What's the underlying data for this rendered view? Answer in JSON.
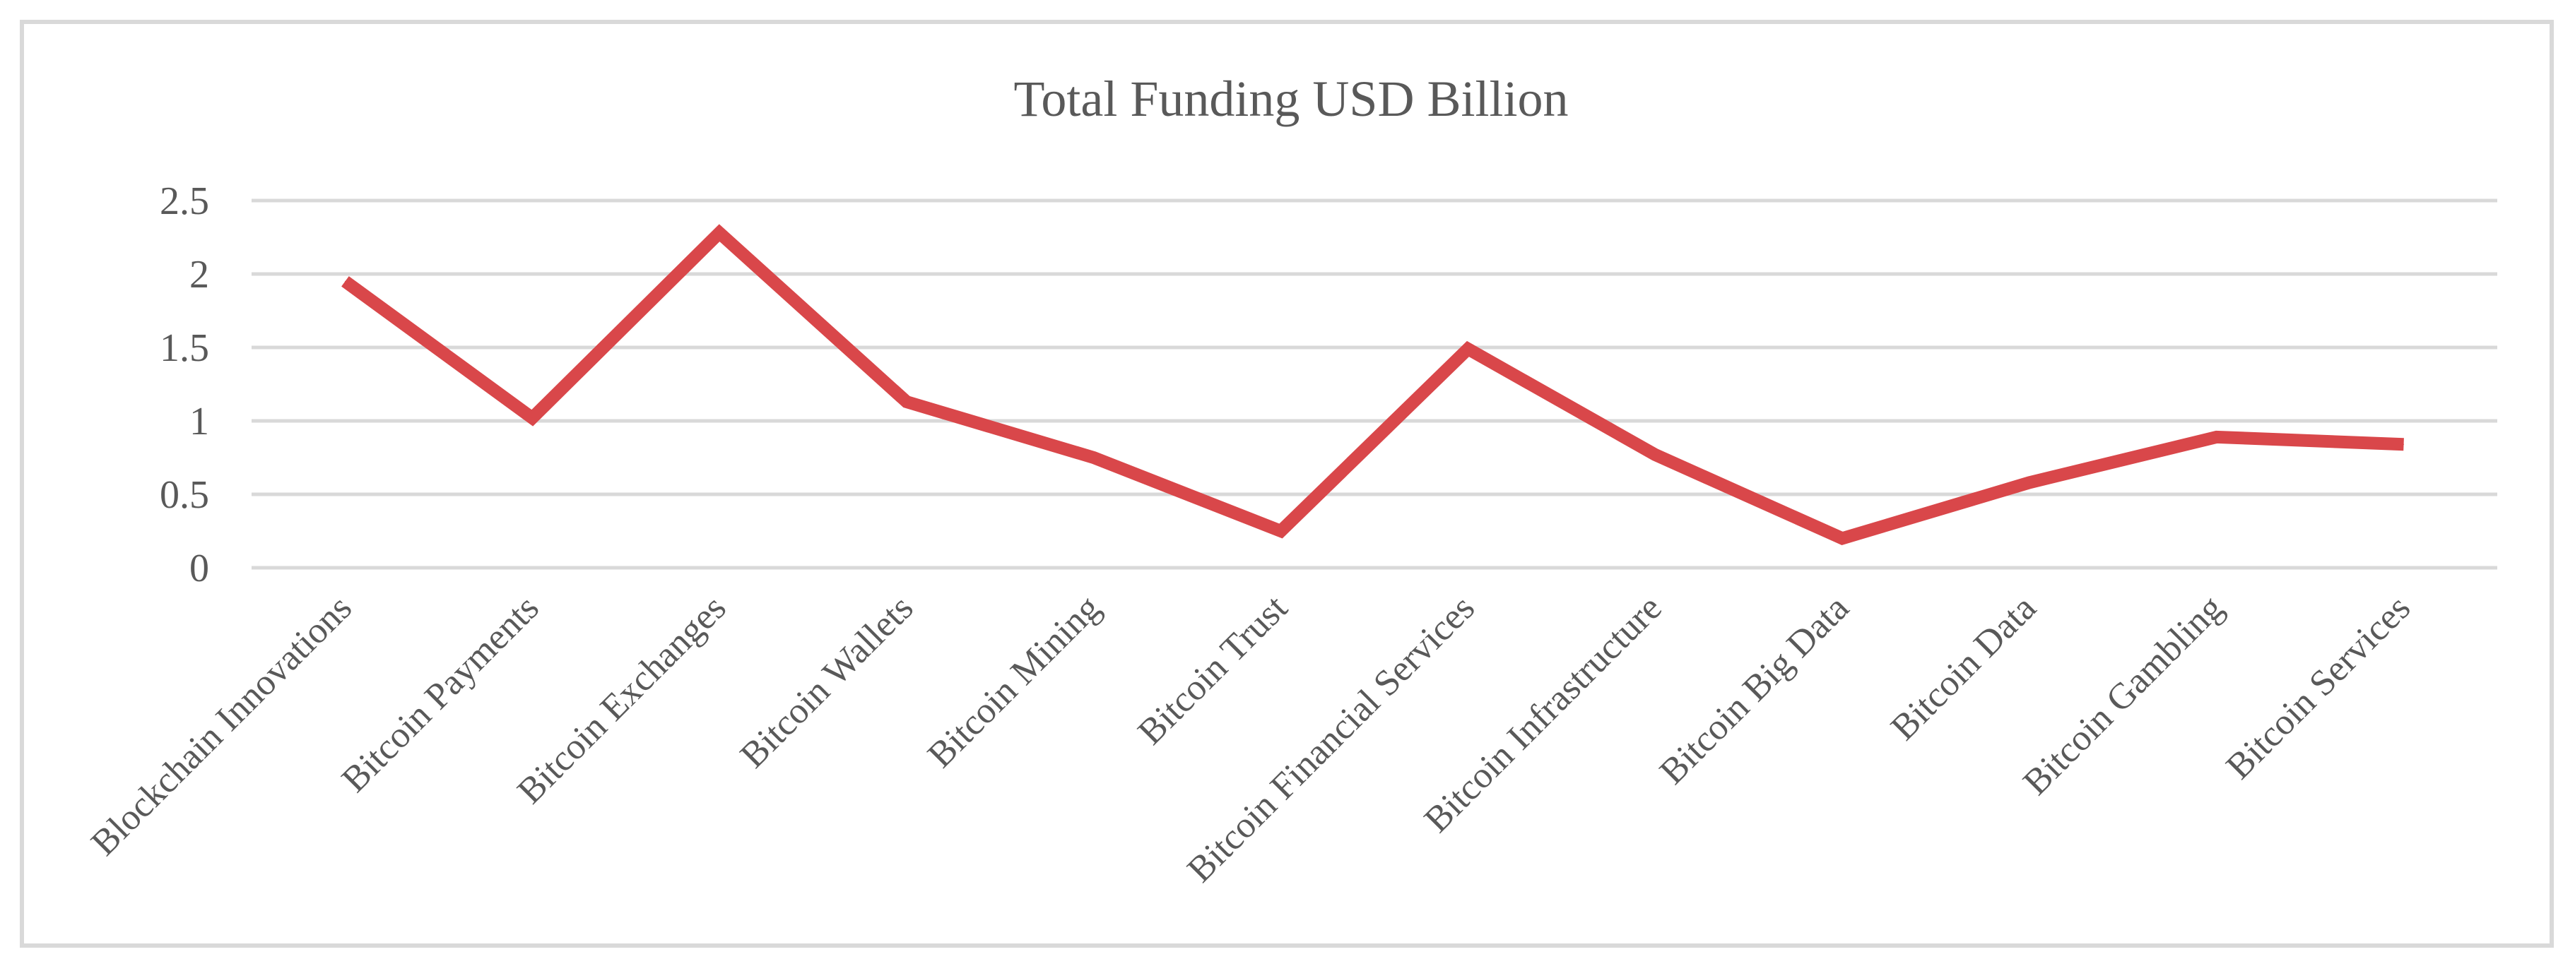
{
  "chart_data": {
    "type": "line",
    "title": "Total Funding USD Billion",
    "xlabel": "",
    "ylabel": "",
    "ylim": [
      0,
      2.5
    ],
    "yticks": [
      0,
      0.5,
      1,
      1.5,
      2,
      2.5
    ],
    "ytick_labels": [
      "0",
      "0.5",
      "1",
      "1.5",
      "2",
      "2.5"
    ],
    "grid": true,
    "legend": "none",
    "categories": [
      "Blockchain Innovations",
      "Bitcoin Payments",
      "Bitcoin Exchanges",
      "Bitcoin Wallets",
      "Bitcoin Mining",
      "Bitcoin Trust",
      "Bitcoin Financial Services",
      "Bitcoin Infrastructure",
      "Bitcoin Big Data",
      "Bitcoin Data",
      "Bitcoin Gambling",
      "Bitcoin Services"
    ],
    "series": [
      {
        "values": [
          1.95,
          1.02,
          2.28,
          1.13,
          0.75,
          0.25,
          1.49,
          0.77,
          0.2,
          0.58,
          0.89,
          0.84
        ],
        "color": "#d9474a"
      }
    ]
  }
}
